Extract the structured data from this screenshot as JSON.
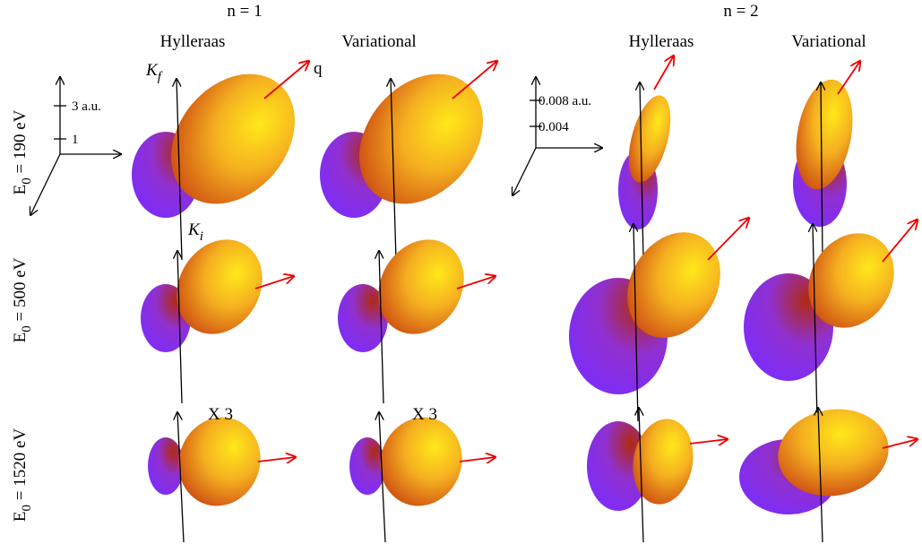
{
  "header": {
    "n1": "n = 1",
    "n2": "n = 2",
    "columns": [
      "Hylleraas",
      "Variational",
      "Hylleraas",
      "Variational"
    ]
  },
  "rows": [
    {
      "symbol": "E",
      "sub": "0",
      "rest": " = 190 eV"
    },
    {
      "symbol": "E",
      "sub": "0",
      "rest": " = 500 eV"
    },
    {
      "symbol": "E",
      "sub": "0",
      "rest": " = 1520 eV"
    }
  ],
  "scale_left": {
    "tick_upper": "3 a.u.",
    "tick_lower": "1"
  },
  "scale_right": {
    "tick_upper": "0.008 a.u.",
    "tick_lower": "0.004"
  },
  "vectors": {
    "kf": {
      "symbol": "K",
      "sub": "f"
    },
    "ki": {
      "symbol": "K",
      "sub": "i"
    },
    "q": "q"
  },
  "factors": [
    "X 3",
    "X 3"
  ]
}
